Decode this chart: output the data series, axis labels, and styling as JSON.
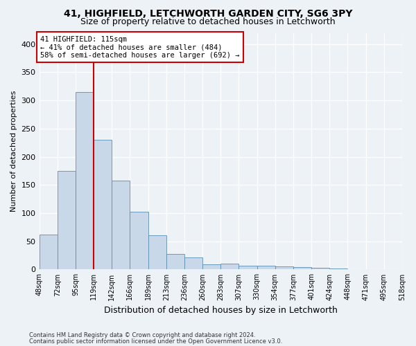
{
  "title1": "41, HIGHFIELD, LETCHWORTH GARDEN CITY, SG6 3PY",
  "title2": "Size of property relative to detached houses in Letchworth",
  "xlabel": "Distribution of detached houses by size in Letchworth",
  "ylabel": "Number of detached properties",
  "bar_values": [
    62,
    175,
    315,
    230,
    158,
    102,
    61,
    28,
    21,
    9,
    10,
    7,
    7,
    5,
    4,
    3,
    2,
    1,
    1,
    1
  ],
  "categories": [
    "48sqm",
    "72sqm",
    "95sqm",
    "119sqm",
    "142sqm",
    "166sqm",
    "189sqm",
    "213sqm",
    "236sqm",
    "260sqm",
    "283sqm",
    "307sqm",
    "330sqm",
    "354sqm",
    "377sqm",
    "401sqm",
    "424sqm",
    "448sqm",
    "471sqm",
    "495sqm",
    "518sqm"
  ],
  "bar_color": "#c8d8e8",
  "bar_edge_color": "#5b8db0",
  "vline_color": "#cc0000",
  "annotation_text": "41 HIGHFIELD: 115sqm\n← 41% of detached houses are smaller (484)\n58% of semi-detached houses are larger (692) →",
  "annotation_box_color": "white",
  "annotation_box_edge": "#cc0000",
  "ylim": [
    0,
    420
  ],
  "yticks": [
    0,
    50,
    100,
    150,
    200,
    250,
    300,
    350,
    400
  ],
  "footer1": "Contains HM Land Registry data © Crown copyright and database right 2024.",
  "footer2": "Contains public sector information licensed under the Open Government Licence v3.0.",
  "bg_color": "#edf2f7",
  "grid_color": "#ffffff",
  "title1_fontsize": 10,
  "title2_fontsize": 9
}
